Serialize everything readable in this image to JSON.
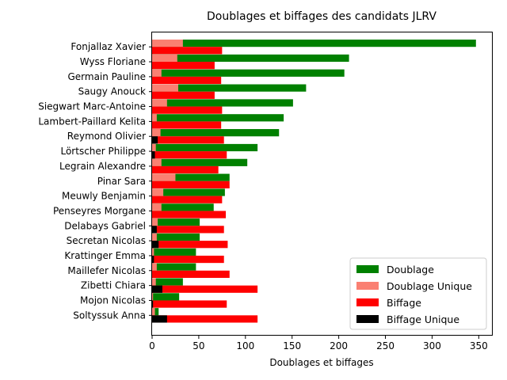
{
  "chart_data": {
    "type": "bar",
    "orientation": "horizontal",
    "title": "Doublages et biffages des candidats JLRV",
    "xlabel": "Doublages et biffages",
    "ylabel": "",
    "xlim": [
      0,
      365
    ],
    "xticks": [
      0,
      50,
      100,
      150,
      200,
      250,
      300,
      350
    ],
    "grid": false,
    "legend_position": "lower-right",
    "categories": [
      "Fonjallaz Xavier",
      "Wyss Floriane",
      "Germain Pauline",
      "Saugy Anouck",
      "Siegwart Marc-Antoine",
      "Lambert-Paillard Kelita",
      "Reymond Olivier",
      "Lörtscher Philippe",
      "Legrain Alexandre",
      "Pinar Sara",
      "Meuwly Benjamin",
      "Penseyres Morgane",
      "Delabays Gabriel",
      "Secretan Nicolas",
      "Krattinger Emma",
      "Maillefer Nicolas",
      "Zibetti Chiara",
      "Mojon Nicolas",
      "Soltyssuk Anna"
    ],
    "series": [
      {
        "name": "Doublage",
        "color": "#008000",
        "position": "upper",
        "values": [
          347,
          211,
          206,
          165,
          151,
          141,
          136,
          113,
          102,
          83,
          78,
          66,
          51,
          51,
          47,
          47,
          33,
          29,
          7
        ]
      },
      {
        "name": "Doublage Unique",
        "color": "#fa8072",
        "position": "upper",
        "values": [
          33,
          27,
          10,
          28,
          16,
          5,
          9,
          4,
          10,
          25,
          12,
          10,
          6,
          5,
          2,
          5,
          4,
          1,
          3
        ]
      },
      {
        "name": "Biffage",
        "color": "#ff0000",
        "position": "lower",
        "values": [
          75,
          67,
          74,
          67,
          75,
          74,
          77,
          80,
          71,
          83,
          75,
          79,
          77,
          81,
          77,
          83,
          113,
          80,
          113
        ]
      },
      {
        "name": "Biffage Unique",
        "color": "#000000",
        "position": "lower",
        "values": [
          0,
          0,
          0,
          0,
          0,
          0,
          6,
          3,
          0,
          0,
          0,
          0,
          5,
          7,
          2,
          0,
          11,
          1,
          16
        ]
      }
    ]
  }
}
